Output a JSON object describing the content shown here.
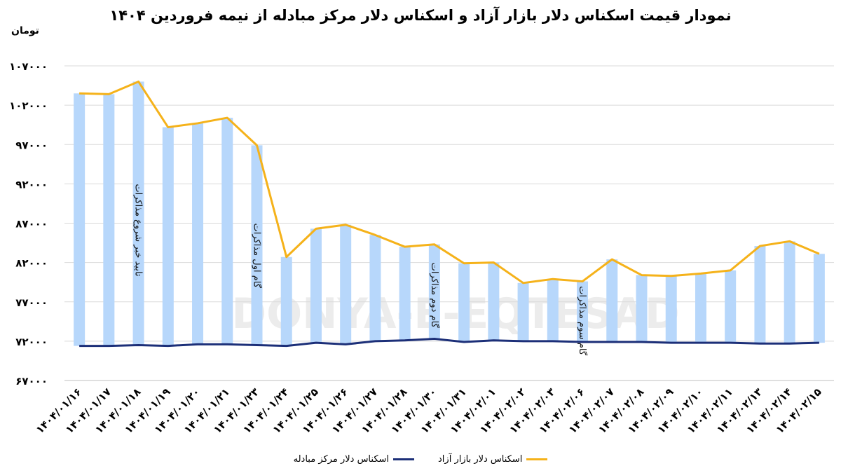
{
  "title": "نمودار قیمت اسکناس دلار بازار آزاد و اسکناس دلار مرکز مبادله از نیمه فروردین ۱۴۰۴",
  "unit": "تومان",
  "watermark": "DONYA-E-EQTESAD",
  "colors": {
    "bar": "#b7d7fb",
    "free_line": "#f5b21a",
    "official_line": "#1c2f78",
    "grid": "#d9d9d9"
  },
  "chart_data": {
    "type": "bar",
    "categories": [
      "۱۴۰۴/۰۱/۱۶",
      "۱۴۰۴/۰۱/۱۷",
      "۱۴۰۴/۰۱/۱۸",
      "۱۴۰۴/۰۱/۱۹",
      "۱۴۰۴/۰۱/۲۰",
      "۱۴۰۴/۰۱/۲۱",
      "۱۴۰۴/۰۱/۲۳",
      "۱۴۰۴/۰۱/۲۴",
      "۱۴۰۴/۰۱/۲۵",
      "۱۴۰۴/۰۱/۲۶",
      "۱۴۰۴/۰۱/۲۷",
      "۱۴۰۴/۰۱/۲۸",
      "۱۴۰۴/۰۱/۳۰",
      "۱۴۰۴/۰۱/۳۱",
      "۱۴۰۴/۰۲/۰۱",
      "۱۴۰۴/۰۲/۰۲",
      "۱۴۰۴/۰۲/۰۳",
      "۱۴۰۴/۰۲/۰۶",
      "۱۴۰۴/۰۲/۰۷",
      "۱۴۰۴/۰۲/۰۸",
      "۱۴۰۴/۰۲/۰۹",
      "۱۴۰۴/۰۲/۱۰",
      "۱۴۰۴/۰۲/۱۱",
      "۱۴۰۴/۰۲/۱۳",
      "۱۴۰۴/۰۲/۱۴",
      "۱۴۰۴/۰۲/۱۵"
    ],
    "series": [
      {
        "name": "اسکناس دلار بازار آزاد",
        "values": [
          103500,
          103400,
          105000,
          99200,
          99700,
          100400,
          96900,
          82700,
          86300,
          86800,
          85500,
          84000,
          84300,
          81900,
          82000,
          79400,
          79900,
          79600,
          82400,
          80400,
          80300,
          80600,
          81000,
          84100,
          84700,
          83100
        ]
      },
      {
        "name": "اسکناس دلار مرکز مبادله",
        "values": [
          71400,
          71400,
          71500,
          71400,
          71600,
          71600,
          71500,
          71400,
          71800,
          71600,
          72000,
          72100,
          72300,
          71900,
          72100,
          72000,
          72000,
          71900,
          71900,
          71900,
          71800,
          71800,
          71800,
          71700,
          71700,
          71800
        ]
      }
    ],
    "ylim": [
      67000,
      107000
    ],
    "yticks": [
      67000,
      72000,
      77000,
      82000,
      87000,
      92000,
      97000,
      102000,
      107000
    ],
    "ytick_labels": [
      "۶۷۰۰۰",
      "۷۲۰۰۰",
      "۷۷۰۰۰",
      "۸۲۰۰۰",
      "۸۷۰۰۰",
      "۹۲۰۰۰",
      "۹۷۰۰۰",
      "۱۰۲۰۰۰",
      "۱۰۷۰۰۰"
    ],
    "annotations": [
      {
        "text": "تایید خبر شروع مذاکرات",
        "index": 2,
        "y_top": 92000
      },
      {
        "text": "گام اول مذاکرات",
        "index": 6,
        "y_top": 87000
      },
      {
        "text": "گام دوم مذاکرات",
        "index": 12,
        "y_top": 82000
      },
      {
        "text": "گام سوم مذاکرات",
        "index": 17,
        "y_top": 79000
      }
    ],
    "legend": [
      {
        "label": "اسکناس دلار مرکز مبادله",
        "series": 1
      },
      {
        "label": "اسکناس دلار بازار آزاد",
        "series": 0
      }
    ],
    "legend_position": "bottom",
    "grid": true
  }
}
